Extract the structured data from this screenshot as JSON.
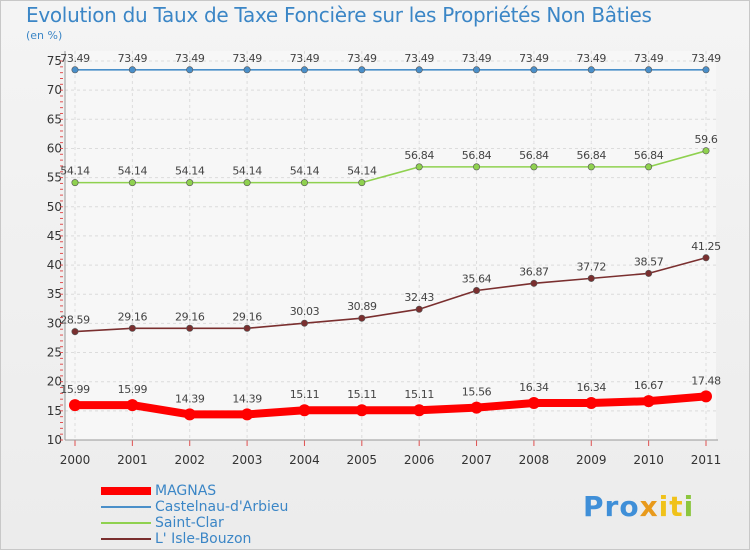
{
  "chart_data": {
    "type": "line",
    "title": "Evolution du Taux de Taxe Foncière sur les Propriétés Non Bâties",
    "subtitle": "(en %)",
    "categories": [
      "2000",
      "2001",
      "2002",
      "2003",
      "2004",
      "2005",
      "2006",
      "2007",
      "2008",
      "2009",
      "2010",
      "2011"
    ],
    "ylim": [
      10,
      75
    ],
    "yticks": [
      10,
      15,
      20,
      25,
      30,
      35,
      40,
      45,
      50,
      55,
      60,
      65,
      70,
      75
    ],
    "grid": true,
    "legend_position": "bottom-left",
    "series": [
      {
        "name": "MAGNAS",
        "color": "#ff0000",
        "values": [
          15.99,
          15.99,
          14.39,
          14.39,
          15.11,
          15.11,
          15.11,
          15.56,
          16.34,
          16.34,
          16.67,
          17.48
        ],
        "labels": [
          "15.99",
          "15.99",
          "14.39",
          "14.39",
          "15.11",
          "15.11",
          "15.11",
          "15.56",
          "16.34",
          "16.34",
          "16.67",
          "17.48"
        ],
        "thick": true
      },
      {
        "name": "Castelnau-d'Arbieu",
        "color": "#4a8fc9",
        "values": [
          73.49,
          73.49,
          73.49,
          73.49,
          73.49,
          73.49,
          73.49,
          73.49,
          73.49,
          73.49,
          73.49,
          73.49
        ],
        "labels": [
          "73.49",
          "73.49",
          "73.49",
          "73.49",
          "73.49",
          "73.49",
          "73.49",
          "73.49",
          "73.49",
          "73.49",
          "73.49",
          "73.49"
        ],
        "thick": false
      },
      {
        "name": "Saint-Clar",
        "color": "#8fd14f",
        "values": [
          54.14,
          54.14,
          54.14,
          54.14,
          54.14,
          54.14,
          56.84,
          56.84,
          56.84,
          56.84,
          56.84,
          59.6
        ],
        "labels": [
          "54.14",
          "54.14",
          "54.14",
          "54.14",
          "54.14",
          "54.14",
          "56.84",
          "56.84",
          "56.84",
          "56.84",
          "56.84",
          "59.6"
        ],
        "thick": false
      },
      {
        "name": "L' Isle-Bouzon",
        "color": "#7a2f2f",
        "values": [
          28.59,
          29.16,
          29.16,
          29.16,
          30.03,
          30.89,
          32.43,
          35.64,
          36.87,
          37.72,
          38.57,
          41.25
        ],
        "labels": [
          "28.59",
          "29.16",
          "29.16",
          "29.16",
          "30.03",
          "30.89",
          "32.43",
          "35.64",
          "36.87",
          "37.72",
          "38.57",
          "41.25"
        ],
        "thick": false
      }
    ]
  },
  "logo": {
    "parts": [
      "Pro",
      "x",
      "it",
      "i"
    ]
  }
}
